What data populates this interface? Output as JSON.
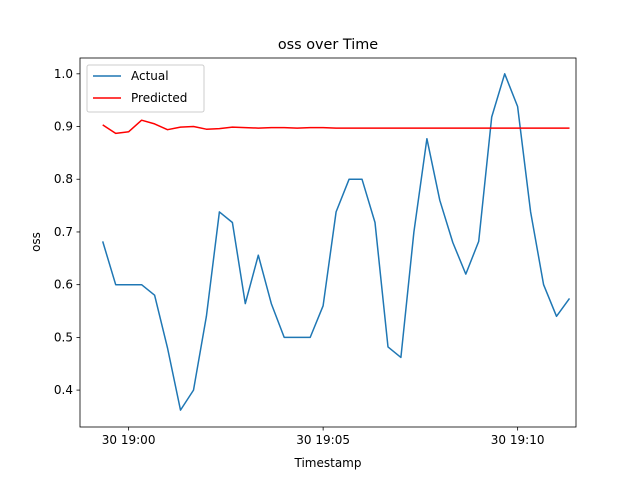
{
  "chart_data": {
    "type": "line",
    "title": "oss over Time",
    "xlabel": "Timestamp",
    "ylabel": "oss",
    "x_ticks": [
      "30 19:00",
      "30 19:05",
      "30 19:10"
    ],
    "y_ticks": [
      "0.4",
      "0.5",
      "0.6",
      "0.7",
      "0.8",
      "0.9",
      "1.0"
    ],
    "ylim": [
      0.33,
      1.03
    ],
    "xlim": [
      "19:58:45",
      "20:11:30"
    ],
    "x": [
      "19:59:20",
      "19:59:40",
      "20:00:00",
      "20:00:20",
      "20:00:40",
      "20:01:00",
      "20:01:20",
      "20:01:40",
      "20:02:00",
      "20:02:20",
      "20:02:40",
      "20:03:00",
      "20:03:20",
      "20:03:40",
      "20:04:00",
      "20:04:20",
      "20:04:40",
      "20:05:00",
      "20:05:20",
      "20:05:40",
      "20:06:00",
      "20:06:20",
      "20:06:40",
      "20:07:00",
      "20:07:20",
      "20:07:40",
      "20:08:00",
      "20:08:20",
      "20:08:40",
      "20:09:00",
      "20:09:20",
      "20:09:40",
      "20:10:00",
      "20:10:20",
      "20:10:40",
      "20:11:00",
      "20:11:20"
    ],
    "series": [
      {
        "name": "Actual",
        "color": "#1f77b4",
        "values": [
          0.682,
          0.6,
          0.6,
          0.6,
          0.58,
          0.48,
          0.362,
          0.4,
          0.54,
          0.738,
          0.718,
          0.564,
          0.656,
          0.564,
          0.5,
          0.5,
          0.5,
          0.56,
          0.738,
          0.8,
          0.8,
          0.718,
          0.482,
          0.462,
          0.7,
          0.877,
          0.76,
          0.68,
          0.62,
          0.682,
          0.918,
          1.0,
          0.938,
          0.738,
          0.6,
          0.54,
          0.574
        ]
      },
      {
        "name": "Predicted",
        "color": "#ff0000",
        "values": [
          0.903,
          0.887,
          0.89,
          0.912,
          0.905,
          0.894,
          0.899,
          0.9,
          0.895,
          0.896,
          0.899,
          0.898,
          0.897,
          0.898,
          0.898,
          0.897,
          0.898,
          0.898,
          0.897,
          0.897,
          0.897,
          0.897,
          0.897,
          0.897,
          0.897,
          0.897,
          0.897,
          0.897,
          0.897,
          0.897,
          0.897,
          0.897,
          0.897,
          0.897,
          0.897,
          0.897,
          0.897
        ]
      }
    ],
    "legend": "top-left",
    "grid": false
  }
}
